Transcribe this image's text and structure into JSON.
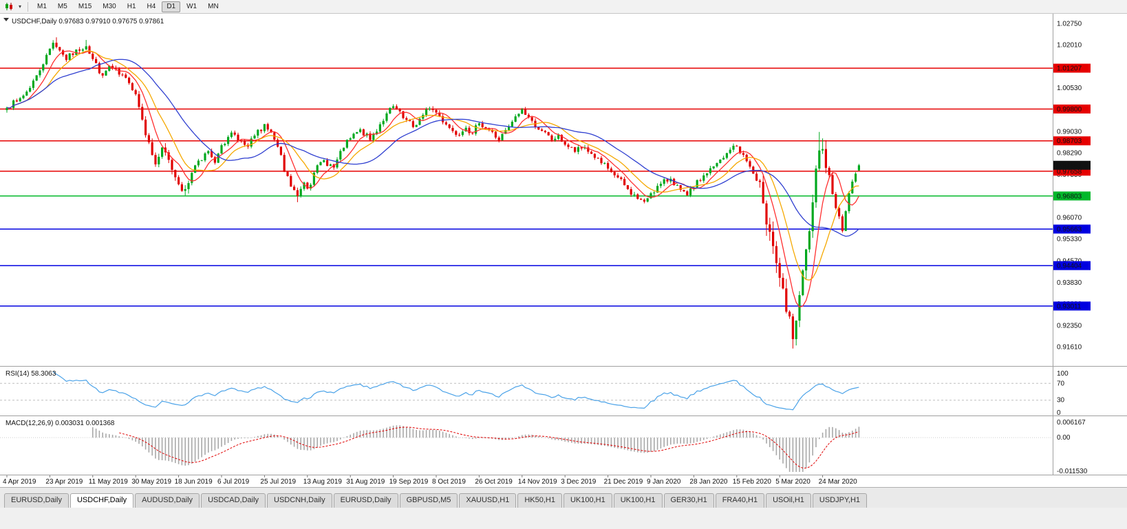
{
  "toolbar": {
    "chart_type_icon": "candlestick-chart-icon",
    "dropdown_icon": "dropdown-arrow-icon",
    "timeframes": [
      "M1",
      "M5",
      "M15",
      "M30",
      "H1",
      "H4",
      "D1",
      "W1",
      "MN"
    ],
    "active_timeframe": "D1"
  },
  "header": {
    "symbol": "USDCHF,Daily",
    "open": "0.97683",
    "high": "0.97910",
    "low": "0.97675",
    "close": "0.97861"
  },
  "price_axis_labels": [
    "1.02750",
    "1.02010",
    "1.01270",
    "1.00530",
    "0.99790",
    "0.99030",
    "0.98290",
    "0.97550",
    "0.96810",
    "0.96070",
    "0.95330",
    "0.94570",
    "0.93830",
    "0.93090",
    "0.92350",
    "0.91610"
  ],
  "current_price_badge": {
    "value": "0.97861",
    "color": "#111111"
  },
  "horizontal_lines": [
    {
      "value": "1.01207",
      "price": 1.01207,
      "color": "#e60000",
      "role": "resistance"
    },
    {
      "value": "0.99800",
      "price": 0.998,
      "color": "#e60000",
      "role": "resistance"
    },
    {
      "value": "0.98703",
      "price": 0.98703,
      "color": "#e60000",
      "role": "resistance"
    },
    {
      "value": "0.97658",
      "price": 0.97658,
      "color": "#e60000",
      "role": "resistance"
    },
    {
      "value": "0.96803",
      "price": 0.96803,
      "color": "#00b82a",
      "role": "pivot"
    },
    {
      "value": "0.95663",
      "price": 0.95663,
      "color": "#0000e0",
      "role": "support"
    },
    {
      "value": "0.94404",
      "price": 0.94404,
      "color": "#0000e0",
      "role": "support"
    },
    {
      "value": "0.93011",
      "price": 0.93011,
      "color": "#0000e0",
      "role": "support"
    }
  ],
  "rsi": {
    "label": "RSI(14)",
    "current_value": "58.3063",
    "axis_labels": [
      "100",
      "70",
      "30",
      "0"
    ],
    "levels": [
      70,
      30
    ],
    "line_color": "#4aa2e8"
  },
  "macd": {
    "label": "MACD(12,26,9)",
    "main_value": "0.003031",
    "signal_value": "0.001368",
    "axis_labels": [
      "0.006167",
      "0.00",
      "-0.011530"
    ],
    "histogram_color": "#a8a8a8",
    "signal_color": "#e00000"
  },
  "time_axis": {
    "labels": [
      "4 Apr 2019",
      "23 Apr 2019",
      "11 May 2019",
      "30 May 2019",
      "18 Jun 2019",
      "6 Jul 2019",
      "25 Jul 2019",
      "13 Aug 2019",
      "31 Aug 2019",
      "19 Sep 2019",
      "8 Oct 2019",
      "26 Oct 2019",
      "14 Nov 2019",
      "3 Dec 2019",
      "21 Dec 2019",
      "9 Jan 2020",
      "28 Jan 2020",
      "15 Feb 2020",
      "5 Mar 2020",
      "24 Mar 2020"
    ]
  },
  "tabs": {
    "labels": [
      "EURUSD,Daily",
      "USDCHF,Daily",
      "AUDUSD,Daily",
      "USDCAD,Daily",
      "USDCNH,Daily",
      "EURUSD,Daily",
      "GBPUSD,M5",
      "XAUUSD,H1",
      "HK50,H1",
      "UK100,H1",
      "UK100,H1",
      "GER30,H1",
      "FRA40,H1",
      "USOil,H1",
      "USDJPY,H1"
    ],
    "active_index": 1
  },
  "chart_data": {
    "type": "candlestick",
    "symbol": "USDCHF",
    "timeframe": "Daily",
    "visible_ohlc": {
      "open": 0.97683,
      "high": 0.9791,
      "low": 0.97675,
      "close": 0.97861
    },
    "price_max_seen": 1.0227,
    "price_min_seen": 0.9161,
    "bull_color": "#00a81e",
    "bear_color": "#e10000",
    "candle_count": 259,
    "close_anchors": [
      [
        0,
        0.9987
      ],
      [
        3,
        1.0005
      ],
      [
        6,
        1.004
      ],
      [
        9,
        1.0095
      ],
      [
        12,
        1.0165
      ],
      [
        14,
        1.021
      ],
      [
        16,
        1.0183
      ],
      [
        18,
        1.015
      ],
      [
        21,
        1.0183
      ],
      [
        24,
        1.0198
      ],
      [
        26,
        1.0152
      ],
      [
        29,
        1.0093
      ],
      [
        31,
        1.0128
      ],
      [
        34,
        1.0098
      ],
      [
        37,
        1.0072
      ],
      [
        39,
        1.0032
      ],
      [
        41,
        0.9948
      ],
      [
        43,
        0.9863
      ],
      [
        45,
        0.979
      ],
      [
        47,
        0.9843
      ],
      [
        49,
        0.9803
      ],
      [
        52,
        0.9724
      ],
      [
        54,
        0.97
      ],
      [
        56,
        0.9763
      ],
      [
        58,
        0.9803
      ],
      [
        61,
        0.9833
      ],
      [
        63,
        0.9793
      ],
      [
        65,
        0.9853
      ],
      [
        68,
        0.9898
      ],
      [
        70,
        0.9868
      ],
      [
        73,
        0.9848
      ],
      [
        75,
        0.9888
      ],
      [
        78,
        0.9928
      ],
      [
        80,
        0.9898
      ],
      [
        82,
        0.9848
      ],
      [
        84,
        0.9763
      ],
      [
        86,
        0.9713
      ],
      [
        88,
        0.9678
      ],
      [
        90,
        0.9728
      ],
      [
        91,
        0.9708
      ],
      [
        93,
        0.9763
      ],
      [
        96,
        0.9803
      ],
      [
        99,
        0.9778
      ],
      [
        102,
        0.9848
      ],
      [
        104,
        0.9878
      ],
      [
        107,
        0.9908
      ],
      [
        110,
        0.9873
      ],
      [
        113,
        0.9928
      ],
      [
        115,
        0.9963
      ],
      [
        117,
        0.9988
      ],
      [
        120,
        0.9948
      ],
      [
        123,
        0.9918
      ],
      [
        126,
        0.9958
      ],
      [
        128,
        0.9983
      ],
      [
        130,
        0.9968
      ],
      [
        133,
        0.9928
      ],
      [
        136,
        0.9893
      ],
      [
        139,
        0.9918
      ],
      [
        141,
        0.9893
      ],
      [
        143,
        0.9933
      ],
      [
        146,
        0.9908
      ],
      [
        149,
        0.9873
      ],
      [
        152,
        0.9918
      ],
      [
        154,
        0.9953
      ],
      [
        156,
        0.9978
      ],
      [
        159,
        0.9938
      ],
      [
        162,
        0.9903
      ],
      [
        165,
        0.9873
      ],
      [
        167,
        0.9888
      ],
      [
        169,
        0.9858
      ],
      [
        172,
        0.9833
      ],
      [
        175,
        0.9848
      ],
      [
        178,
        0.9813
      ],
      [
        180,
        0.9793
      ],
      [
        182,
        0.9773
      ],
      [
        185,
        0.9743
      ],
      [
        188,
        0.9703
      ],
      [
        191,
        0.9671
      ],
      [
        193,
        0.9659
      ],
      [
        195,
        0.9691
      ],
      [
        198,
        0.9721
      ],
      [
        201,
        0.9741
      ],
      [
        204,
        0.9699
      ],
      [
        206,
        0.9681
      ],
      [
        208,
        0.9711
      ],
      [
        211,
        0.9751
      ],
      [
        214,
        0.9781
      ],
      [
        217,
        0.9811
      ],
      [
        219,
        0.9841
      ],
      [
        221,
        0.9851
      ],
      [
        223,
        0.9821
      ],
      [
        225,
        0.9781
      ],
      [
        227,
        0.9731
      ],
      [
        229,
        0.9661
      ],
      [
        231,
        0.9561
      ],
      [
        233,
        0.9451
      ],
      [
        234,
        0.9391
      ],
      [
        236,
        0.9281
      ],
      [
        238,
        0.9191
      ],
      [
        239,
        0.9251
      ],
      [
        240,
        0.9331
      ],
      [
        242,
        0.9491
      ],
      [
        244,
        0.9651
      ],
      [
        246,
        0.9831
      ],
      [
        247,
        0.9851
      ],
      [
        249,
        0.9751
      ],
      [
        251,
        0.9641
      ],
      [
        253,
        0.9561
      ],
      [
        255,
        0.9691
      ],
      [
        257,
        0.9756
      ],
      [
        258,
        0.97861
      ]
    ],
    "extreme_overrides": {
      "15": {
        "high": 1.0227
      },
      "24": {
        "high": 1.0218
      },
      "88": {
        "low": 0.9659
      },
      "193": {
        "low": 0.9655
      },
      "238": {
        "low": 0.9161
      },
      "246": {
        "high": 0.9901
      }
    },
    "moving_averages": [
      {
        "period": 7,
        "color": "#ff2f2f",
        "name": "fast-ma"
      },
      {
        "period": 13,
        "color": "#f5a800",
        "name": "mid-ma"
      },
      {
        "period": 26,
        "color": "#2f3fd0",
        "name": "slow-ma"
      }
    ],
    "indicators": [
      {
        "name": "RSI",
        "period": 14,
        "current": 58.3063
      },
      {
        "name": "MACD",
        "fast": 12,
        "slow": 26,
        "smoothing": 9,
        "main": 0.003031,
        "signal": 0.001368
      }
    ],
    "support_resistance_levels": [
      1.01207,
      0.998,
      0.98703,
      0.97658,
      0.96803,
      0.95663,
      0.94404,
      0.93011
    ]
  }
}
